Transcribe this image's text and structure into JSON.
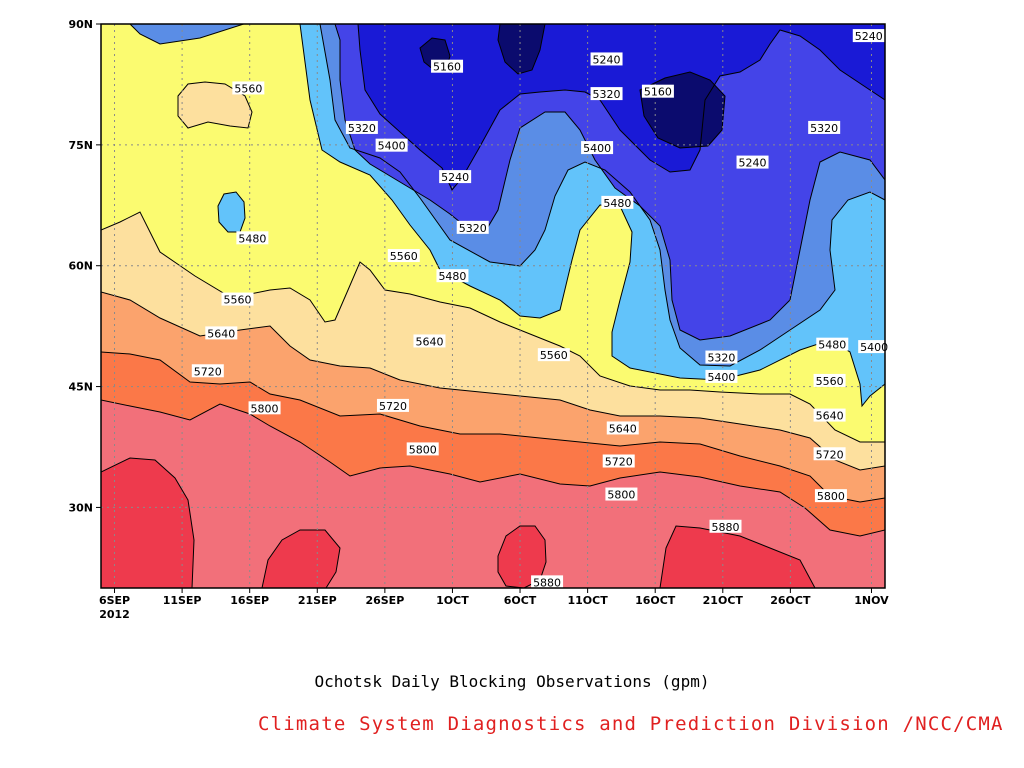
{
  "chart_data": {
    "type": "heatmap",
    "title": "Ochotsk Daily Blocking Observations (gpm)",
    "source": "Climate System Diagnostics and Prediction Division /NCC/CMA",
    "x_axis": {
      "ticks": [
        "6SEP",
        "11SEP",
        "16SEP",
        "21SEP",
        "26SEP",
        "1OCT",
        "6OCT",
        "11OCT",
        "16OCT",
        "21OCT",
        "26OCT",
        "1NOV"
      ],
      "tick_days": [
        0,
        5,
        10,
        15,
        20,
        25,
        30,
        35,
        40,
        45,
        50,
        56
      ],
      "year_label": "2012",
      "range_days": [
        -1,
        57
      ]
    },
    "y_axis": {
      "ticks": [
        "30N",
        "45N",
        "60N",
        "75N",
        "90N"
      ],
      "tick_values": [
        30,
        45,
        60,
        75,
        90
      ],
      "range": [
        20,
        90
      ]
    },
    "contour_levels": [
      5160,
      5240,
      5320,
      5400,
      5480,
      5560,
      5640,
      5720,
      5800,
      5880
    ],
    "color_bands": [
      {
        "range": "<5160",
        "color": "#0b0b6e"
      },
      {
        "range": "5160-5240",
        "color": "#1a1ad6"
      },
      {
        "range": "5240-5320",
        "color": "#4444e8"
      },
      {
        "range": "5320-5400",
        "color": "#5a8de6"
      },
      {
        "range": "5400-5480",
        "color": "#62c3fa"
      },
      {
        "range": "5480-5560",
        "color": "#fbfb70"
      },
      {
        "range": "5560-5640",
        "color": "#fde09e"
      },
      {
        "range": "5640-5720",
        "color": "#fba36d"
      },
      {
        "range": "5720-5800",
        "color": "#fb7848"
      },
      {
        "range": "5800-5880",
        "color": "#f2707a"
      },
      {
        "range": ">5880",
        "color": "#ee3a4d"
      }
    ],
    "contour_labels": [
      {
        "text": "5160",
        "day": 24.6,
        "lat": 84.7
      },
      {
        "text": "5160",
        "day": 40.2,
        "lat": 81.6
      },
      {
        "text": "5240",
        "day": 36.4,
        "lat": 85.6
      },
      {
        "text": "5240",
        "day": 55.8,
        "lat": 88.5
      },
      {
        "text": "5240",
        "day": 25.2,
        "lat": 71.0
      },
      {
        "text": "5240",
        "day": 47.2,
        "lat": 72.8
      },
      {
        "text": "5320",
        "day": 36.4,
        "lat": 81.3
      },
      {
        "text": "5320",
        "day": 18.3,
        "lat": 77.1
      },
      {
        "text": "5320",
        "day": 52.5,
        "lat": 77.1
      },
      {
        "text": "5320",
        "day": 26.5,
        "lat": 64.7
      },
      {
        "text": "5320",
        "day": 44.9,
        "lat": 48.6
      },
      {
        "text": "5400",
        "day": 20.5,
        "lat": 74.9
      },
      {
        "text": "5400",
        "day": 35.7,
        "lat": 74.6
      },
      {
        "text": "5400",
        "day": 44.9,
        "lat": 46.2
      },
      {
        "text": "5400",
        "day": 56.2,
        "lat": 49.9
      },
      {
        "text": "5480",
        "day": 37.2,
        "lat": 67.8
      },
      {
        "text": "5480",
        "day": 10.2,
        "lat": 63.4
      },
      {
        "text": "5480",
        "day": 25.0,
        "lat": 58.7
      },
      {
        "text": "5480",
        "day": 53.1,
        "lat": 50.2
      },
      {
        "text": "5560",
        "day": 9.9,
        "lat": 82.0
      },
      {
        "text": "5560",
        "day": 21.4,
        "lat": 61.2
      },
      {
        "text": "5560",
        "day": 9.1,
        "lat": 55.8
      },
      {
        "text": "5560",
        "day": 32.5,
        "lat": 48.9
      },
      {
        "text": "5560",
        "day": 52.9,
        "lat": 45.7
      },
      {
        "text": "5640",
        "day": 7.9,
        "lat": 51.6
      },
      {
        "text": "5640",
        "day": 23.3,
        "lat": 50.6
      },
      {
        "text": "5640",
        "day": 37.6,
        "lat": 39.8
      },
      {
        "text": "5640",
        "day": 52.9,
        "lat": 41.4
      },
      {
        "text": "5720",
        "day": 6.9,
        "lat": 46.9
      },
      {
        "text": "5720",
        "day": 20.6,
        "lat": 42.6
      },
      {
        "text": "5720",
        "day": 37.3,
        "lat": 35.7
      },
      {
        "text": "5720",
        "day": 52.9,
        "lat": 36.6
      },
      {
        "text": "5800",
        "day": 11.1,
        "lat": 42.3
      },
      {
        "text": "5800",
        "day": 22.8,
        "lat": 37.2
      },
      {
        "text": "5800",
        "day": 37.5,
        "lat": 31.6
      },
      {
        "text": "5800",
        "day": 53.0,
        "lat": 31.4
      },
      {
        "text": "5880",
        "day": 45.2,
        "lat": 27.6
      },
      {
        "text": "5880",
        "day": 32.0,
        "lat": 20.7
      }
    ],
    "grid": true,
    "legend": "none"
  },
  "colors": {
    "frame": "#000000",
    "grid": "#8a8a8a",
    "caption": "#000000",
    "source": "#e02020"
  }
}
